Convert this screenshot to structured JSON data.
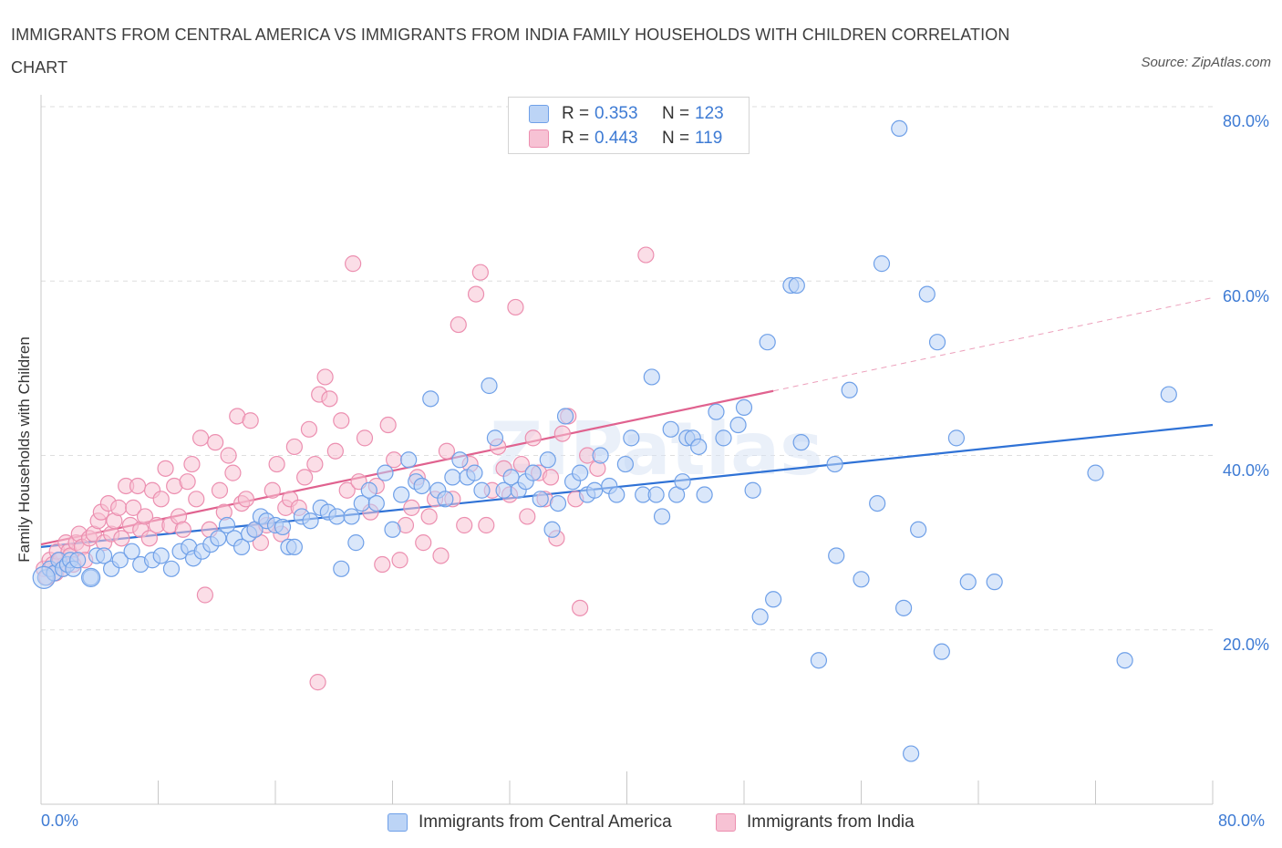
{
  "chart_data": {
    "type": "scatter",
    "title": "IMMIGRANTS FROM CENTRAL AMERICA VS IMMIGRANTS FROM INDIA FAMILY HOUSEHOLDS WITH CHILDREN CORRELATION CHART",
    "source": "Source: ZipAtlas.com",
    "watermark": "ZIPatlas",
    "xlabel": "",
    "ylabel": "Family Households with Children",
    "xlim": [
      0,
      80
    ],
    "ylim": [
      0,
      80
    ],
    "x_tick_labels": [
      "0.0%",
      "80.0%"
    ],
    "y_tick_labels": [
      {
        "value": 80,
        "label": "80.0%"
      },
      {
        "value": 60,
        "label": "60.0%"
      },
      {
        "value": 40,
        "label": "40.0%"
      },
      {
        "value": 20,
        "label": "20.0%"
      }
    ],
    "grid": true,
    "legend_position": "top-center",
    "stats": [
      {
        "series": "Immigrants from Central America",
        "r_label": "R =",
        "r": "0.353",
        "n_label": "N =",
        "n": "123"
      },
      {
        "series": "Immigrants from India",
        "r_label": "R =",
        "r": "0.443",
        "n_label": "N =",
        "n": "119"
      }
    ],
    "series": [
      {
        "name": "Immigrants from Central America",
        "color": "#6fa0e8",
        "fill": "#bcd4f6",
        "line_color": "#2f72d6",
        "trend": {
          "x": [
            0,
            80
          ],
          "y": [
            29.5,
            43.5
          ],
          "dashed_to": null
        },
        "points": [
          [
            0.3,
            26
          ],
          [
            0.6,
            27
          ],
          [
            0.9,
            26.5
          ],
          [
            1.2,
            28
          ],
          [
            1.5,
            27
          ],
          [
            1.8,
            27.5
          ],
          [
            2,
            28
          ],
          [
            2.2,
            27
          ],
          [
            2.5,
            28
          ],
          [
            3.4,
            26
          ],
          [
            3.8,
            28.5
          ],
          [
            4.3,
            28.5
          ],
          [
            4.8,
            27
          ],
          [
            5.4,
            28
          ],
          [
            6.2,
            29
          ],
          [
            6.8,
            27.5
          ],
          [
            7.6,
            28
          ],
          [
            8.2,
            28.5
          ],
          [
            8.9,
            27
          ],
          [
            9.5,
            29
          ],
          [
            10.1,
            29.5
          ],
          [
            10.4,
            28.2
          ],
          [
            11,
            29
          ],
          [
            11.6,
            29.8
          ],
          [
            12.1,
            30.5
          ],
          [
            12.7,
            32
          ],
          [
            13.2,
            30.5
          ],
          [
            13.7,
            29.5
          ],
          [
            14.2,
            31
          ],
          [
            14.6,
            31.5
          ],
          [
            15,
            33
          ],
          [
            15.4,
            32.5
          ],
          [
            16,
            32
          ],
          [
            16.5,
            31.8
          ],
          [
            16.9,
            29.5
          ],
          [
            17.3,
            29.5
          ],
          [
            17.8,
            33
          ],
          [
            18.4,
            32.5
          ],
          [
            19.1,
            34
          ],
          [
            19.6,
            33.5
          ],
          [
            20.2,
            33
          ],
          [
            20.5,
            27
          ],
          [
            21.2,
            33
          ],
          [
            21.5,
            30
          ],
          [
            21.9,
            34.5
          ],
          [
            22.4,
            36
          ],
          [
            22.9,
            34.5
          ],
          [
            23.5,
            38
          ],
          [
            24,
            31.5
          ],
          [
            24.6,
            35.5
          ],
          [
            25.1,
            39.5
          ],
          [
            25.6,
            37
          ],
          [
            26,
            36.5
          ],
          [
            26.6,
            46.5
          ],
          [
            27.1,
            36
          ],
          [
            27.6,
            35
          ],
          [
            28.1,
            37.5
          ],
          [
            28.6,
            39.5
          ],
          [
            29.1,
            37.5
          ],
          [
            29.6,
            38
          ],
          [
            30.1,
            36
          ],
          [
            30.6,
            48
          ],
          [
            31,
            42
          ],
          [
            31.6,
            36
          ],
          [
            32.1,
            37.5
          ],
          [
            32.6,
            36
          ],
          [
            33.1,
            37
          ],
          [
            33.6,
            38
          ],
          [
            34.1,
            35
          ],
          [
            34.6,
            39.5
          ],
          [
            34.9,
            31.5
          ],
          [
            35.3,
            34.5
          ],
          [
            35.8,
            44.5
          ],
          [
            36.3,
            37
          ],
          [
            36.8,
            38
          ],
          [
            37.3,
            35.5
          ],
          [
            37.8,
            36
          ],
          [
            38.2,
            40
          ],
          [
            38.8,
            36.5
          ],
          [
            39.3,
            35.5
          ],
          [
            39.9,
            39
          ],
          [
            40.3,
            42
          ],
          [
            41.1,
            35.5
          ],
          [
            41.7,
            49
          ],
          [
            42,
            35.5
          ],
          [
            42.4,
            33
          ],
          [
            43,
            43
          ],
          [
            43.4,
            35.5
          ],
          [
            43.8,
            37
          ],
          [
            44.1,
            42
          ],
          [
            44.5,
            42
          ],
          [
            44.9,
            41
          ],
          [
            45.3,
            35.5
          ],
          [
            46.1,
            45
          ],
          [
            46.6,
            42
          ],
          [
            47.6,
            43.5
          ],
          [
            48,
            45.5
          ],
          [
            48.6,
            36
          ],
          [
            49.1,
            21.5
          ],
          [
            49.6,
            53
          ],
          [
            50,
            23.5
          ],
          [
            51.2,
            59.5
          ],
          [
            51.6,
            59.5
          ],
          [
            51.9,
            41.5
          ],
          [
            53.1,
            16.5
          ],
          [
            54.2,
            39
          ],
          [
            54.3,
            28.5
          ],
          [
            55.2,
            47.5
          ],
          [
            56,
            25.8
          ],
          [
            57.1,
            34.5
          ],
          [
            57.4,
            62
          ],
          [
            58.6,
            77.5
          ],
          [
            58.9,
            22.5
          ],
          [
            59.4,
            5.8
          ],
          [
            59.9,
            31.5
          ],
          [
            60.5,
            58.5
          ],
          [
            61.2,
            53
          ],
          [
            61.5,
            17.5
          ],
          [
            62.5,
            42
          ],
          [
            63.3,
            25.5
          ],
          [
            65.1,
            25.5
          ],
          [
            72,
            38
          ],
          [
            74,
            16.5
          ],
          [
            77,
            47
          ]
        ]
      },
      {
        "name": "Immigrants from India",
        "color": "#ec8fb0",
        "fill": "#f7c2d4",
        "line_color": "#e0628f",
        "trend": {
          "x": [
            0,
            50
          ],
          "y": [
            29.8,
            47.4
          ],
          "dashed_to": {
            "x": 80,
            "y": 58.1
          }
        },
        "points": [
          [
            0.2,
            27
          ],
          [
            0.4,
            26
          ],
          [
            0.6,
            28
          ],
          [
            0.8,
            27.5
          ],
          [
            1,
            26.5
          ],
          [
            1.1,
            29
          ],
          [
            1.3,
            28
          ],
          [
            1.5,
            27
          ],
          [
            1.7,
            30
          ],
          [
            1.9,
            29
          ],
          [
            2,
            28.5
          ],
          [
            2.2,
            27.5
          ],
          [
            2.4,
            30
          ],
          [
            2.6,
            31
          ],
          [
            2.8,
            29.5
          ],
          [
            3,
            28
          ],
          [
            3.3,
            30.5
          ],
          [
            3.6,
            31
          ],
          [
            3.9,
            32.5
          ],
          [
            4.1,
            33.5
          ],
          [
            4.3,
            30
          ],
          [
            4.6,
            34.5
          ],
          [
            4.8,
            31
          ],
          [
            5,
            32.5
          ],
          [
            5.3,
            34
          ],
          [
            5.5,
            30.5
          ],
          [
            5.8,
            36.5
          ],
          [
            6.1,
            32
          ],
          [
            6.3,
            34
          ],
          [
            6.6,
            36.5
          ],
          [
            6.8,
            31.5
          ],
          [
            7.1,
            33
          ],
          [
            7.4,
            30.5
          ],
          [
            7.6,
            36
          ],
          [
            7.9,
            32
          ],
          [
            8.2,
            35
          ],
          [
            8.5,
            38.5
          ],
          [
            8.8,
            32
          ],
          [
            9.1,
            36.5
          ],
          [
            9.4,
            33
          ],
          [
            9.7,
            31.5
          ],
          [
            10,
            37
          ],
          [
            10.3,
            39
          ],
          [
            10.6,
            35
          ],
          [
            10.9,
            42
          ],
          [
            11.2,
            24
          ],
          [
            11.5,
            31.5
          ],
          [
            11.9,
            41.5
          ],
          [
            12.2,
            36
          ],
          [
            12.5,
            33.5
          ],
          [
            12.8,
            40
          ],
          [
            13.1,
            38
          ],
          [
            13.4,
            44.5
          ],
          [
            13.7,
            34.5
          ],
          [
            14,
            35
          ],
          [
            14.3,
            44
          ],
          [
            14.6,
            31.5
          ],
          [
            15,
            30
          ],
          [
            15.4,
            32
          ],
          [
            15.8,
            36
          ],
          [
            16.1,
            39
          ],
          [
            16.4,
            31
          ],
          [
            16.7,
            34
          ],
          [
            17,
            35
          ],
          [
            17.3,
            41
          ],
          [
            17.6,
            34
          ],
          [
            18,
            37.5
          ],
          [
            18.3,
            43
          ],
          [
            18.7,
            39
          ],
          [
            19,
            47
          ],
          [
            19.4,
            49
          ],
          [
            19.7,
            46.5
          ],
          [
            20.1,
            40.5
          ],
          [
            20.5,
            44
          ],
          [
            20.9,
            36
          ],
          [
            21.3,
            62
          ],
          [
            21.7,
            37
          ],
          [
            22.1,
            42
          ],
          [
            22.5,
            33.5
          ],
          [
            22.9,
            36.5
          ],
          [
            23.3,
            27.5
          ],
          [
            23.7,
            43.5
          ],
          [
            24.1,
            39.5
          ],
          [
            24.5,
            28
          ],
          [
            24.9,
            32
          ],
          [
            25.3,
            34
          ],
          [
            25.7,
            37.5
          ],
          [
            26.1,
            30
          ],
          [
            26.5,
            33
          ],
          [
            26.9,
            35
          ],
          [
            27.3,
            28.5
          ],
          [
            27.7,
            40.5
          ],
          [
            28.1,
            35
          ],
          [
            28.5,
            55
          ],
          [
            28.9,
            32
          ],
          [
            29.3,
            39
          ],
          [
            29.7,
            58.5
          ],
          [
            30,
            61
          ],
          [
            30.4,
            32
          ],
          [
            30.8,
            36
          ],
          [
            31.2,
            41
          ],
          [
            31.6,
            38.5
          ],
          [
            32,
            35.5
          ],
          [
            32.4,
            57
          ],
          [
            32.8,
            39
          ],
          [
            33.2,
            33
          ],
          [
            33.6,
            42
          ],
          [
            34,
            38
          ],
          [
            34.4,
            35
          ],
          [
            34.8,
            37.5
          ],
          [
            35.2,
            30.5
          ],
          [
            35.6,
            42.5
          ],
          [
            36,
            44.5
          ],
          [
            36.5,
            35
          ],
          [
            36.8,
            22.5
          ],
          [
            37.3,
            40
          ],
          [
            38,
            38.5
          ],
          [
            41.3,
            63
          ],
          [
            18.9,
            14
          ]
        ]
      }
    ],
    "bottom_legend": [
      {
        "label": "Immigrants from Central America",
        "color": "#6fa0e8",
        "fill": "#bcd4f6"
      },
      {
        "label": "Immigrants from India",
        "color": "#ec8fb0",
        "fill": "#f7c2d4"
      }
    ]
  }
}
